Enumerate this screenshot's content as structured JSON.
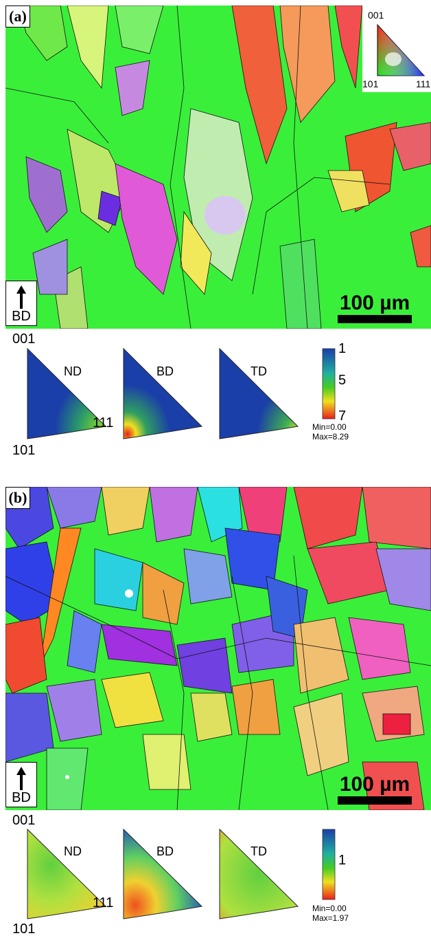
{
  "panels": [
    {
      "label": "(a)",
      "bd_label": "BD",
      "scale_label": "100 µm",
      "ipf_key": {
        "top": "001",
        "left": "101",
        "right": "111"
      },
      "pole_figures": {
        "vertex_top": "001",
        "vertex_left": "101",
        "vertex_right": "111",
        "directions": [
          "ND",
          "BD",
          "TD"
        ],
        "colorbar_ticks": [
          "1",
          "5",
          "7"
        ],
        "min_label": "Min=0.00",
        "max_label": "Max=8.29"
      }
    },
    {
      "label": "(b)",
      "bd_label": "BD",
      "scale_label": "100 µm",
      "pole_figures": {
        "vertex_top": "001",
        "vertex_left": "101",
        "vertex_right": "111",
        "directions": [
          "ND",
          "BD",
          "TD"
        ],
        "colorbar_ticks": [
          "1"
        ],
        "min_label": "Min=0.00",
        "max_label": "Max=1.97"
      }
    }
  ],
  "colors": {
    "grain_green": "#33ee33",
    "grain_red": "#ee2222",
    "grain_blue": "#2233ee",
    "grain_magenta": "#cc33cc",
    "grain_orange": "#ff8822",
    "colorbar_blue": "#1a3fa8",
    "colorbar_green": "#44cc22",
    "colorbar_red": "#e8201a"
  }
}
